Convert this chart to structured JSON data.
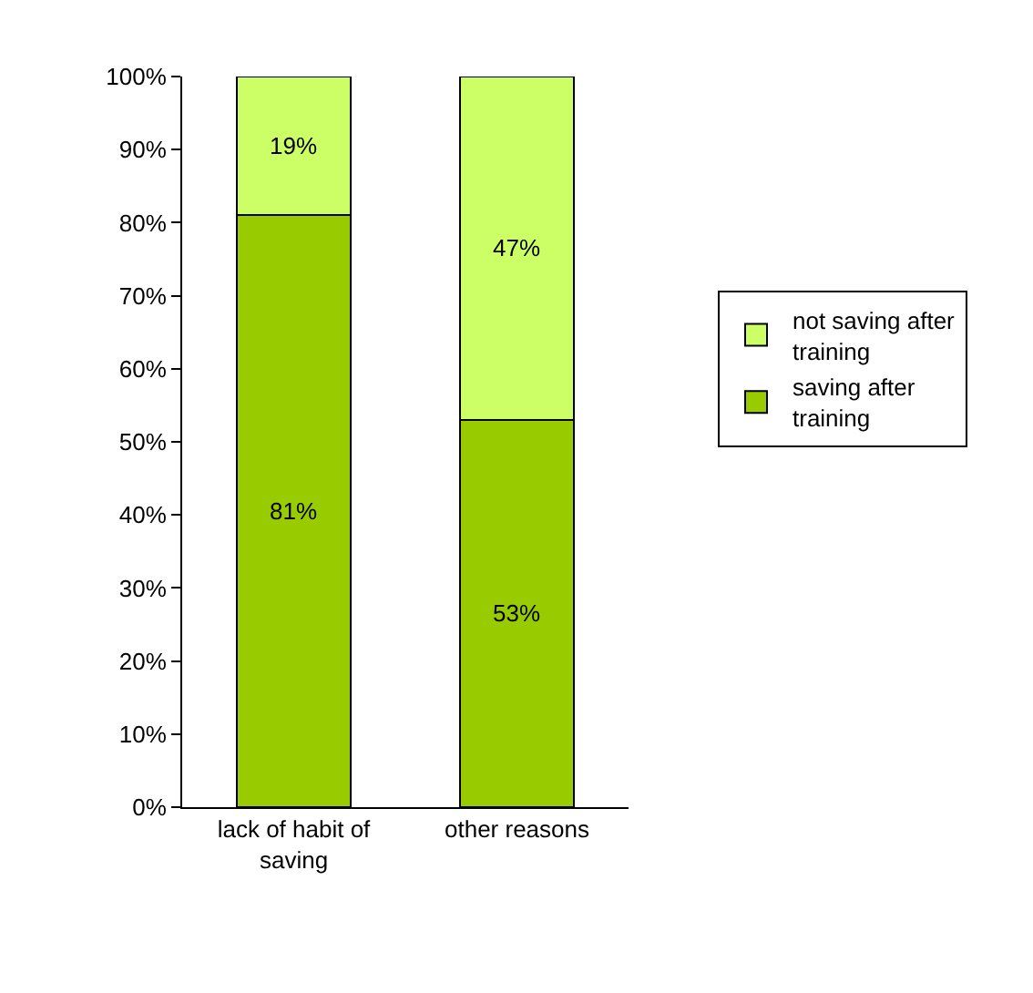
{
  "chart_data": {
    "type": "bar",
    "stacked": true,
    "categories": [
      "lack of habit of saving",
      "other reasons"
    ],
    "series": [
      {
        "name": "saving after training",
        "color": "#99cc00",
        "values": [
          81,
          53
        ],
        "value_labels": [
          "81%",
          "53%"
        ]
      },
      {
        "name": "not saving after training",
        "color": "#ccff66",
        "values": [
          19,
          47
        ],
        "value_labels": [
          "19%",
          "47%"
        ]
      }
    ],
    "ylim": [
      0,
      100
    ],
    "yticks": [
      {
        "value": 0,
        "label": "0%"
      },
      {
        "value": 10,
        "label": "10%"
      },
      {
        "value": 20,
        "label": "20%"
      },
      {
        "value": 30,
        "label": "30%"
      },
      {
        "value": 40,
        "label": "40%"
      },
      {
        "value": 50,
        "label": "50%"
      },
      {
        "value": 60,
        "label": "60%"
      },
      {
        "value": 70,
        "label": "70%"
      },
      {
        "value": 80,
        "label": "80%"
      },
      {
        "value": 90,
        "label": "90%"
      },
      {
        "value": 100,
        "label": "100%"
      }
    ],
    "grid": false,
    "legend": "right"
  }
}
